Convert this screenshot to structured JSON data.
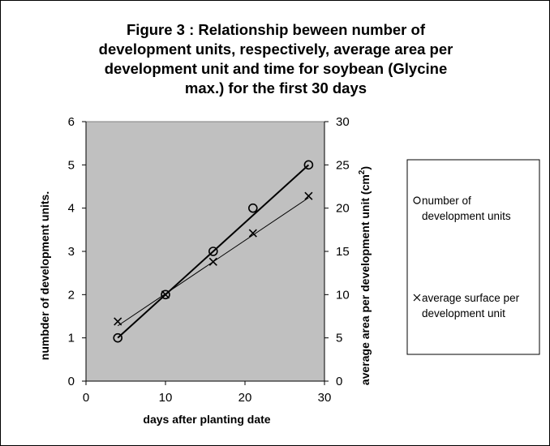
{
  "chart_data": {
    "type": "line",
    "title": "Figure 3 : Relationship beween number of development units, respectively, average area per development unit and time for soybean (Glycine max.) for the first 30 days",
    "title_lines": [
      "Figure 3 : Relationship beween number of",
      "development units, respectively, average area per",
      "development unit and time for soybean (Glycine",
      "max.) for the first 30 days"
    ],
    "xlabel": "days after planting date",
    "ylabel_left": "numbder of development units.",
    "ylabel_right": "average area per development unit (cm",
    "ylabel_right_sup": "2",
    "ylabel_right_end": ")",
    "xlim": [
      0,
      30
    ],
    "ylim_left": [
      0,
      6
    ],
    "ylim_right": [
      0,
      30
    ],
    "x_ticks": [
      "0",
      "10",
      "20",
      "30"
    ],
    "y_left_ticks": [
      "0",
      "1",
      "2",
      "3",
      "4",
      "5",
      "6"
    ],
    "y_right_ticks": [
      "0",
      "5",
      "10",
      "15",
      "20",
      "25",
      "30"
    ],
    "plot_background": "#c0c0c0",
    "grid": false,
    "legend_position": "right",
    "series": [
      {
        "name": "number of development units",
        "legend_lines": [
          "number of",
          "development units"
        ],
        "axis": "left",
        "marker": "circle",
        "x": [
          4,
          10,
          16,
          21,
          28
        ],
        "y": [
          1,
          2,
          3,
          4,
          5
        ],
        "trendline": [
          [
            4,
            1.0
          ],
          [
            28,
            5.0
          ]
        ]
      },
      {
        "name": "average surface per development unit",
        "legend_lines": [
          "average surface per",
          "development unit"
        ],
        "axis": "right",
        "marker": "x",
        "x": [
          4,
          10,
          16,
          21,
          28
        ],
        "y": [
          6.9,
          10,
          13.8,
          17.1,
          21.4
        ],
        "trendline": [
          [
            4,
            6.4
          ],
          [
            28,
            21.2
          ]
        ]
      }
    ]
  }
}
